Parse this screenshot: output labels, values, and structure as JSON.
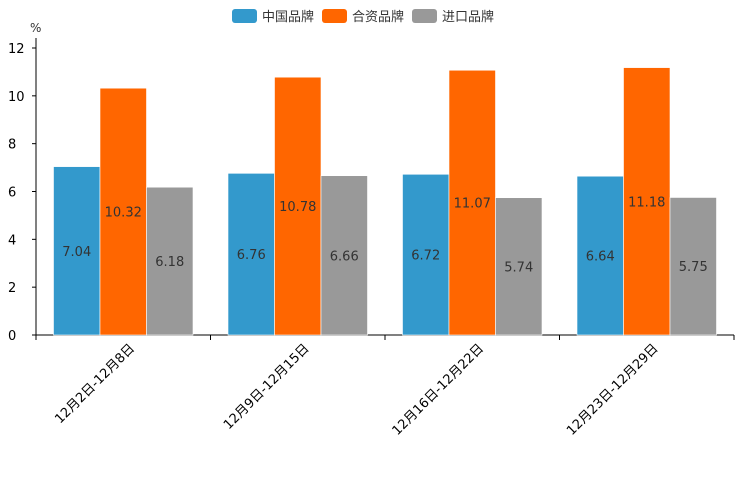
{
  "chart_data": {
    "type": "bar",
    "title": "",
    "xlabel": "",
    "ylabel": "%",
    "ylim": [
      0,
      12
    ],
    "yticks": [
      0,
      2,
      4,
      6,
      8,
      10,
      12
    ],
    "categories": [
      "12月2日-12月8日",
      "12月9日-12月15日",
      "12月16日-12月22日",
      "12月23日-12月29日"
    ],
    "series": [
      {
        "name": "中国品牌",
        "color": "#3399cc",
        "values": [
          7.04,
          6.76,
          6.72,
          6.64
        ]
      },
      {
        "name": "合资品牌",
        "color": "#ff6600",
        "values": [
          10.32,
          10.78,
          11.07,
          11.18
        ]
      },
      {
        "name": "进口品牌",
        "color": "#999999",
        "values": [
          6.18,
          6.66,
          5.74,
          5.75
        ]
      }
    ],
    "legend_position": "top-center",
    "grid": false
  }
}
